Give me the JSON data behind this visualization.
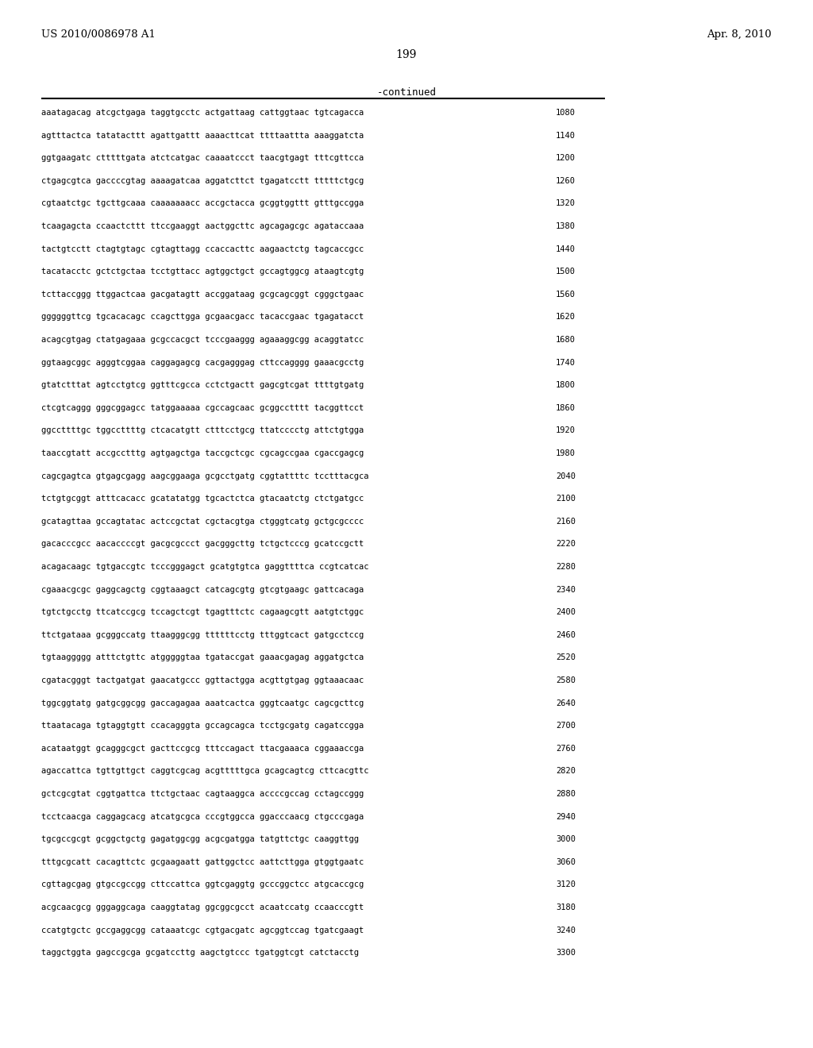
{
  "header_left": "US 2010/0086978 A1",
  "header_right": "Apr. 8, 2010",
  "page_number": "199",
  "continued_label": "-continued",
  "background_color": "#ffffff",
  "text_color": "#000000",
  "sequence_lines": [
    [
      "aaatagacag atcgctgaga taggtgcctc actgattaag cattggtaac tgtcagacca",
      "1080"
    ],
    [
      "agtttactca tatatacttt agattgattt aaaacttcat ttttaattta aaaggatcta",
      "1140"
    ],
    [
      "ggtgaagatc ctttttgata atctcatgac caaaatccct taacgtgagt tttcgttcca",
      "1200"
    ],
    [
      "ctgagcgtca gaccccgtag aaaagatcaa aggatcttct tgagatcctt tttttctgcg",
      "1260"
    ],
    [
      "cgtaatctgc tgcttgcaaa caaaaaaacc accgctacca gcggtggttt gtttgccgga",
      "1320"
    ],
    [
      "tcaagagcta ccaactcttt ttccgaaggt aactggcttc agcagagcgc agataccaaa",
      "1380"
    ],
    [
      "tactgtcctt ctagtgtagc cgtagttagg ccaccacttc aagaactctg tagcaccgcc",
      "1440"
    ],
    [
      "tacatacctc gctctgctaa tcctgttacc agtggctgct gccagtggcg ataagtcgtg",
      "1500"
    ],
    [
      "tcttaccggg ttggactcaa gacgatagtt accggataag gcgcagcggt cgggctgaac",
      "1560"
    ],
    [
      "ggggggttcg tgcacacagc ccagcttgga gcgaacgacc tacaccgaac tgagatacct",
      "1620"
    ],
    [
      "acagcgtgag ctatgagaaa gcgccacgct tcccgaaggg agaaaggcgg acaggtatcc",
      "1680"
    ],
    [
      "ggtaagcggc agggtcggaa caggagagcg cacgagggag cttccagggg gaaacgcctg",
      "1740"
    ],
    [
      "gtatctttat agtcctgtcg ggtttcgcca cctctgactt gagcgtcgat ttttgtgatg",
      "1800"
    ],
    [
      "ctcgtcaggg gggcggagcc tatggaaaaa cgccagcaac gcggcctttt tacggttcct",
      "1860"
    ],
    [
      "ggccttttgc tggccttttg ctcacatgtt ctttcctgcg ttatcccctg attctgtgga",
      "1920"
    ],
    [
      "taaccgtatt accgcctttg agtgagctga taccgctcgc cgcagccgaa cgaccgagcg",
      "1980"
    ],
    [
      "cagcgagtca gtgagcgagg aagcggaaga gcgcctgatg cggtattttc tcctttacgca",
      "2040"
    ],
    [
      "tctgtgcggt atttcacacc gcatatatgg tgcactctca gtacaatctg ctctgatgcc",
      "2100"
    ],
    [
      "gcatagttaa gccagtatac actccgctat cgctacgtga ctgggtcatg gctgcgcccc",
      "2160"
    ],
    [
      "gacacccgcc aacaccccgt gacgcgccct gacgggcttg tctgctcccg gcatccgctt",
      "2220"
    ],
    [
      "acagacaagc tgtgaccgtc tcccgggagct gcatgtgtca gaggttttca ccgtcatcac",
      "2280"
    ],
    [
      "cgaaacgcgc gaggcagctg cggtaaagct catcagcgtg gtcgtgaagc gattcacaga",
      "2340"
    ],
    [
      "tgtctgcctg ttcatccgcg tccagctcgt tgagtttctc cagaagcgtt aatgtctggc",
      "2400"
    ],
    [
      "ttctgataaa gcgggccatg ttaagggcgg ttttttcctg tttggtcact gatgcctccg",
      "2460"
    ],
    [
      "tgtaaggggg atttctgttc atgggggtaa tgataccgat gaaacgagag aggatgctca",
      "2520"
    ],
    [
      "cgatacgggt tactgatgat gaacatgccc ggttactgga acgttgtgag ggtaaacaac",
      "2580"
    ],
    [
      "tggcggtatg gatgcggcgg gaccagagaa aaatcactca gggtcaatgc cagcgcttcg",
      "2640"
    ],
    [
      "ttaatacaga tgtaggtgtt ccacagggta gccagcagca tcctgcgatg cagatccgga",
      "2700"
    ],
    [
      "acataatggt gcagggcgct gacttccgcg tttccagact ttacgaaaca cggaaaccga",
      "2760"
    ],
    [
      "agaccattca tgttgttgct caggtcgcag acgtttttgca gcagcagtcg cttcacgttc",
      "2820"
    ],
    [
      "gctcgcgtat cggtgattca ttctgctaac cagtaaggca accccgccag cctagccggg",
      "2880"
    ],
    [
      "tcctcaacga caggagcacg atcatgcgca cccgtggcca ggacccaacg ctgcccgaga",
      "2940"
    ],
    [
      "tgcgccgcgt gcggctgctg gagatggcgg acgcgatgga tatgttctgc caaggttgg",
      "3000"
    ],
    [
      "tttgcgcatt cacagttctc gcgaagaatt gattggctcc aattcttgga gtggtgaatc",
      "3060"
    ],
    [
      "cgttagcgag gtgccgccgg cttccattca ggtcgaggtg gcccggctcc atgcaccgcg",
      "3120"
    ],
    [
      "acgcaacgcg gggaggcaga caaggtatag ggcggcgcct acaatccatg ccaacccgtt",
      "3180"
    ],
    [
      "ccatgtgctc gccgaggcgg cataaatcgc cgtgacgatc agcggtccag tgatcgaagt",
      "3240"
    ],
    [
      "taggctggta gagccgcga gcgatccttg aagctgtccc tgatggtcgt catctacctg",
      "3300"
    ]
  ]
}
